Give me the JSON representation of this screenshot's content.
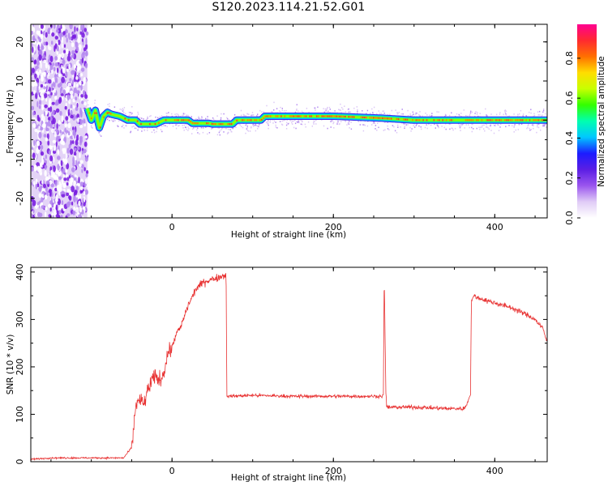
{
  "title": "S120.2023.114.21.52.G01",
  "colors": {
    "snr_line": "#e83232",
    "noise_dot": "#7a1fe0",
    "axis": "#000000"
  },
  "colorbar": {
    "label": "Normalized spectral amplitude",
    "ticks": [
      "0.0",
      "0.2",
      "0.4",
      "0.6",
      "0.8"
    ],
    "tick_values": [
      0.0,
      0.2,
      0.4,
      0.6,
      0.8
    ],
    "range": [
      0,
      0.97
    ],
    "colormap": [
      "#ffffff",
      "#e0ccf6",
      "#9a55ee",
      "#5b1ee4",
      "#1c1cff",
      "#00c8ff",
      "#00ffb0",
      "#32ff00",
      "#c8ff00",
      "#ffdd00",
      "#ff7000",
      "#ff2a30",
      "#ff0090"
    ]
  },
  "chart_data": [
    {
      "type": "heatmap",
      "panel": "spectrogram",
      "xlabel": "Height of straight line (km)",
      "ylabel": "Frequency (Hz)",
      "xlim": [
        -175,
        465
      ],
      "ylim": [
        -25,
        24.5
      ],
      "xticks": [
        0,
        200,
        400
      ],
      "xtick_labels": [
        "0",
        "200",
        "400"
      ],
      "yticks": [
        -20,
        -10,
        0,
        10,
        20
      ],
      "ytick_labels": [
        "-20",
        "-10",
        "0",
        "10",
        "20"
      ],
      "noise_region_x": [
        -175,
        -105
      ],
      "peak_frequency": [
        [
          -105,
          3
        ],
        [
          -100,
          0
        ],
        [
          -95,
          2.5
        ],
        [
          -90,
          -2
        ],
        [
          -85,
          1
        ],
        [
          -80,
          2
        ],
        [
          -75,
          1.5
        ],
        [
          -65,
          1
        ],
        [
          -55,
          0
        ],
        [
          -45,
          0
        ],
        [
          -40,
          -1
        ],
        [
          -20,
          -1
        ],
        [
          -10,
          0
        ],
        [
          15,
          0
        ],
        [
          20,
          0
        ],
        [
          25,
          -0.8
        ],
        [
          45,
          -0.8
        ],
        [
          50,
          -1
        ],
        [
          75,
          -1
        ],
        [
          80,
          0
        ],
        [
          110,
          0
        ],
        [
          115,
          1
        ],
        [
          150,
          1
        ],
        [
          200,
          1
        ],
        [
          260,
          0.5
        ],
        [
          300,
          0
        ],
        [
          465,
          0
        ]
      ]
    },
    {
      "type": "line",
      "panel": "snr",
      "xlabel": "Height of straight line (km)",
      "ylabel": "SNR (10 * v/v)",
      "xlim": [
        -175,
        465
      ],
      "ylim": [
        0,
        410
      ],
      "xticks": [
        0,
        200,
        400
      ],
      "xtick_labels": [
        "0",
        "200",
        "400"
      ],
      "yticks": [
        0,
        100,
        200,
        300,
        400
      ],
      "ytick_labels": [
        "0",
        "100",
        "200",
        "300",
        "400"
      ],
      "series": [
        {
          "x": [
            -175,
            -150,
            -100,
            -60,
            -50,
            -48,
            -45,
            -40,
            -35,
            -30,
            -25,
            -20,
            -15,
            -10,
            -5,
            0,
            5,
            10,
            20,
            30,
            40,
            50,
            60,
            67,
            68,
            70,
            100,
            150,
            200,
            250,
            260,
            262,
            263,
            265,
            266,
            270,
            300,
            340,
            362,
            365,
            368,
            370,
            371,
            375,
            380,
            400,
            420,
            440,
            450,
            460,
            465
          ],
          "y": [
            5,
            8,
            8,
            8,
            30,
            60,
            120,
            130,
            120,
            150,
            170,
            180,
            170,
            190,
            230,
            240,
            270,
            280,
            330,
            365,
            380,
            385,
            390,
            395,
            140,
            138,
            140,
            138,
            138,
            138,
            138,
            140,
            400,
            150,
            115,
            115,
            115,
            112,
            112,
            120,
            135,
            140,
            340,
            350,
            345,
            335,
            325,
            310,
            300,
            280,
            250
          ]
        }
      ]
    }
  ]
}
